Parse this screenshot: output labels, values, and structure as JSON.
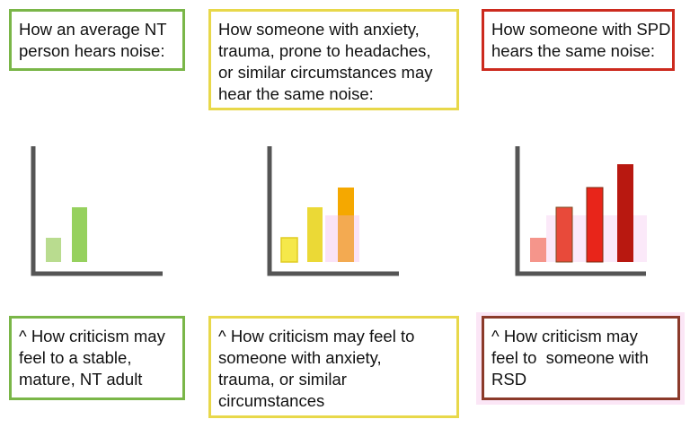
{
  "top_boxes": [
    {
      "lines": [
        "How an average NT",
        "person hears noise:"
      ]
    },
    {
      "lines": [
        "How someone with anxiety,",
        "trauma, prone to headaches,",
        "or similar circumstances may",
        "hear the same noise:"
      ]
    },
    {
      "lines": [
        "How someone with SPD",
        "hears the same noise:"
      ]
    }
  ],
  "bottom_boxes": [
    {
      "lines": [
        "^ How criticism may",
        "feel to a stable,",
        "mature, NT adult"
      ]
    },
    {
      "lines": [
        "^ How criticism may feel to",
        "someone with anxiety,",
        "trauma, or similar",
        "circumstances"
      ]
    },
    {
      "lines": [
        "^ How criticism may",
        "feel to  someone with",
        "RSD"
      ]
    }
  ]
}
